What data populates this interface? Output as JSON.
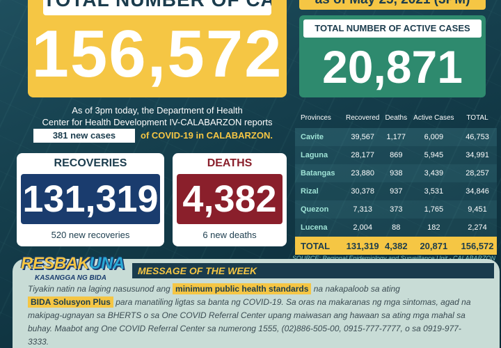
{
  "header": {
    "total_title": "TOTAL NUMBER OF CASES",
    "total_cases": "156,572",
    "as_of": "as of May 25, 2021 (3PM)",
    "active_title": "TOTAL NUMBER OF ACTIVE CASES",
    "active_cases": "20,871"
  },
  "report": {
    "line1": "As of 3pm today, the Department of Health",
    "line2": "Center for Health Development IV-CALABARZON reports",
    "new_cases": "381 new cases",
    "line3_rest": "of COVID-19 in CALABARZON."
  },
  "recoveries": {
    "label": "RECOVERIES",
    "value": "131,319",
    "sub": "520 new recoveries"
  },
  "deaths": {
    "label": "DEATHS",
    "value": "4,382",
    "sub": "6 new deaths"
  },
  "table": {
    "headers": [
      "Provinces",
      "Recovered",
      "Deaths",
      "Active Cases",
      "TOTAL"
    ],
    "rows": [
      [
        "Cavite",
        "39,567",
        "1,177",
        "6,009",
        "46,753"
      ],
      [
        "Laguna",
        "28,177",
        "869",
        "5,945",
        "34,991"
      ],
      [
        "Batangas",
        "23,880",
        "938",
        "3,439",
        "28,257"
      ],
      [
        "Rizal",
        "30,378",
        "937",
        "3,531",
        "34,846"
      ],
      [
        "Quezon",
        "7,313",
        "373",
        "1,765",
        "9,451"
      ],
      [
        "Lucena",
        "2,004",
        "88",
        "182",
        "2,274"
      ]
    ],
    "total": [
      "TOTAL",
      "131,319",
      "4,382",
      "20,871",
      "156,572"
    ]
  },
  "source": "SOURCE: Regional Epidemiology and Surveillance Unit - CALABARZON",
  "message": {
    "logo_a": "RESBAK",
    "logo_b": "UNA",
    "logo_tag": "KASANGGA NG BIDA",
    "title": "MESSAGE OF THE WEEK",
    "t1": "Tiyakin natin na laging nasusunod ang ",
    "h1": "minimum public health standards",
    "t2": " na nakapaloob sa ating",
    "h2": "BIDA Solusyon Plus",
    "t3": " para manatiling ligtas sa banta ng COVID-19. Sa oras na makaranas ng mga sintomas, agad na makipag-ugnayan sa BHERTS o sa One COVID Referral Center upang maiwasan ang hawaan sa ating mga mahal sa buhay. Maabot ang One COVID Referral Center sa numerong 1555, (02)886-505-00, 0915-777-7777, o sa 0919-977-3333."
  }
}
